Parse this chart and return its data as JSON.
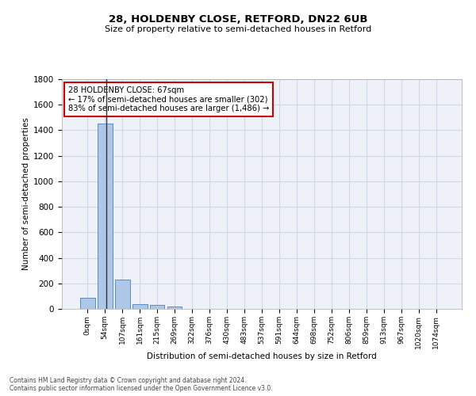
{
  "title1": "28, HOLDENBY CLOSE, RETFORD, DN22 6UB",
  "title2": "Size of property relative to semi-detached houses in Retford",
  "xlabel": "Distribution of semi-detached houses by size in Retford",
  "ylabel": "Number of semi-detached properties",
  "footnote1": "Contains HM Land Registry data © Crown copyright and database right 2024.",
  "footnote2": "Contains public sector information licensed under the Open Government Licence v3.0.",
  "annotation_line1": "28 HOLDENBY CLOSE: 67sqm",
  "annotation_line2": "← 17% of semi-detached houses are smaller (302)",
  "annotation_line3": "83% of semi-detached houses are larger (1,486) →",
  "bar_labels": [
    "0sqm",
    "54sqm",
    "107sqm",
    "161sqm",
    "215sqm",
    "269sqm",
    "322sqm",
    "376sqm",
    "430sqm",
    "483sqm",
    "537sqm",
    "591sqm",
    "644sqm",
    "698sqm",
    "752sqm",
    "806sqm",
    "859sqm",
    "913sqm",
    "967sqm",
    "1020sqm",
    "1074sqm"
  ],
  "bar_values": [
    88,
    1450,
    230,
    38,
    32,
    18,
    0,
    0,
    0,
    0,
    0,
    0,
    0,
    0,
    0,
    0,
    0,
    0,
    0,
    0,
    0
  ],
  "bar_color": "#aec6e8",
  "bar_edge_color": "#5a8fc2",
  "property_line_x": 1.5,
  "ylim": [
    0,
    1800
  ],
  "yticks": [
    0,
    200,
    400,
    600,
    800,
    1000,
    1200,
    1400,
    1600,
    1800
  ],
  "annotation_box_color": "#ffffff",
  "annotation_box_edge_color": "#cc0000",
  "grid_color": "#d0d8e8",
  "bg_color": "#eef2f8"
}
